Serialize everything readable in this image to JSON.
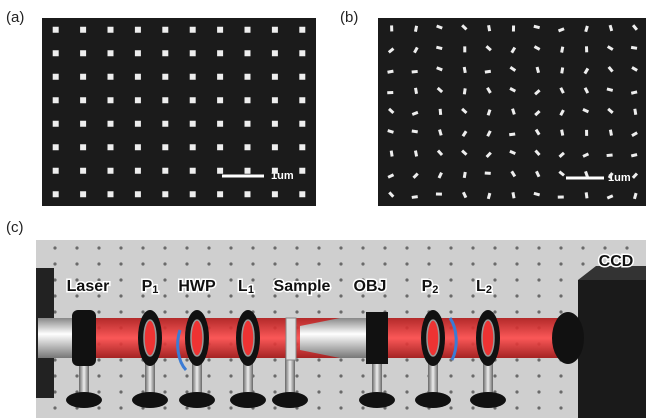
{
  "panels": {
    "a": {
      "label": "(a)",
      "scale_bar": "1um"
    },
    "b": {
      "label": "(b)",
      "scale_bar": "1um"
    },
    "c": {
      "label": "(c)",
      "components": [
        {
          "text": "Laser"
        },
        {
          "text": "P",
          "sub": "1"
        },
        {
          "text": "HWP"
        },
        {
          "text": "L",
          "sub": "1"
        },
        {
          "text": "Sample"
        },
        {
          "text": "OBJ"
        },
        {
          "text": "P",
          "sub": "2"
        },
        {
          "text": "L",
          "sub": "2"
        }
      ],
      "camera": "CCD"
    }
  }
}
